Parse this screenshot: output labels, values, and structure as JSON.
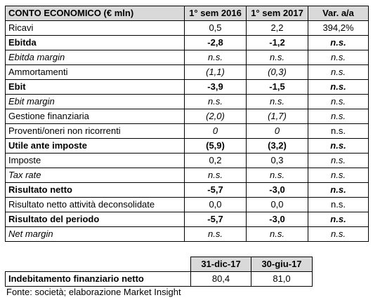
{
  "income_statement": {
    "headers": [
      "CONTO ECONOMICO (€ mln)",
      "1° sem 2016",
      "1° sem 2017",
      "Var. a/a"
    ],
    "rows": [
      {
        "label": "Ricavi",
        "values": [
          "0,5",
          "2,2",
          "394,2%"
        ],
        "style": "normal",
        "var_style": "normal"
      },
      {
        "label": "Ebitda",
        "values": [
          "-2,8",
          "-1,2",
          "n.s."
        ],
        "style": "bold",
        "var_style": "boldit"
      },
      {
        "label": "Ebitda margin",
        "values": [
          "n.s.",
          "n.s.",
          "n.s."
        ],
        "style": "italic",
        "var_style": "it"
      },
      {
        "label": "Ammortamenti",
        "values": [
          "(1,1)",
          "(0,3)",
          "n.s."
        ],
        "style": "normal-itvals",
        "var_style": "it"
      },
      {
        "label": "Ebit",
        "values": [
          "-3,9",
          "-1,5",
          "n.s."
        ],
        "style": "bold",
        "var_style": "boldit"
      },
      {
        "label": "Ebit margin",
        "values": [
          "n.s.",
          "n.s.",
          "n.s."
        ],
        "style": "italic",
        "var_style": "it"
      },
      {
        "label": "Gestione finanziaria",
        "values": [
          "(2,0)",
          "(1,7)",
          "n.s."
        ],
        "style": "normal-itvals",
        "var_style": "it"
      },
      {
        "label": "Proventi/oneri non ricorrenti",
        "values": [
          "0",
          "0",
          "n.s."
        ],
        "style": "normal-itvals",
        "var_style": "normal"
      },
      {
        "label": "Utile ante imposte",
        "values": [
          "(5,9)",
          "(3,2)",
          "n.s."
        ],
        "style": "bold",
        "var_style": "boldit"
      },
      {
        "label": "Imposte",
        "values": [
          "0,2",
          "0,3",
          "n.s."
        ],
        "style": "normal",
        "var_style": "it"
      },
      {
        "label": "Tax rate",
        "values": [
          "n.s.",
          "n.s.",
          "n.s."
        ],
        "style": "italic",
        "var_style": "it"
      },
      {
        "label": "Risultato netto",
        "values": [
          "-5,7",
          "-3,0",
          "n.s."
        ],
        "style": "bold",
        "var_style": "boldit"
      },
      {
        "label": "Risultato netto attività deconsolidate",
        "values": [
          "0,0",
          "0,0",
          "n.s."
        ],
        "style": "normal",
        "var_style": "normal"
      },
      {
        "label": "Risultato del periodo",
        "values": [
          "-5,7",
          "-3,0",
          "n.s."
        ],
        "style": "bold",
        "var_style": "boldit"
      },
      {
        "label": "Net margin",
        "values": [
          "n.s.",
          "n.s.",
          "n.s."
        ],
        "style": "italic",
        "var_style": "it"
      }
    ]
  },
  "debt_table": {
    "headers": [
      "31-dic-17",
      "30-giu-17"
    ],
    "row": {
      "label": "Indebitamento finanziario netto",
      "values": [
        "80,4",
        "81,0"
      ]
    }
  },
  "source": "Fonte: società; elaborazione Market Insight"
}
